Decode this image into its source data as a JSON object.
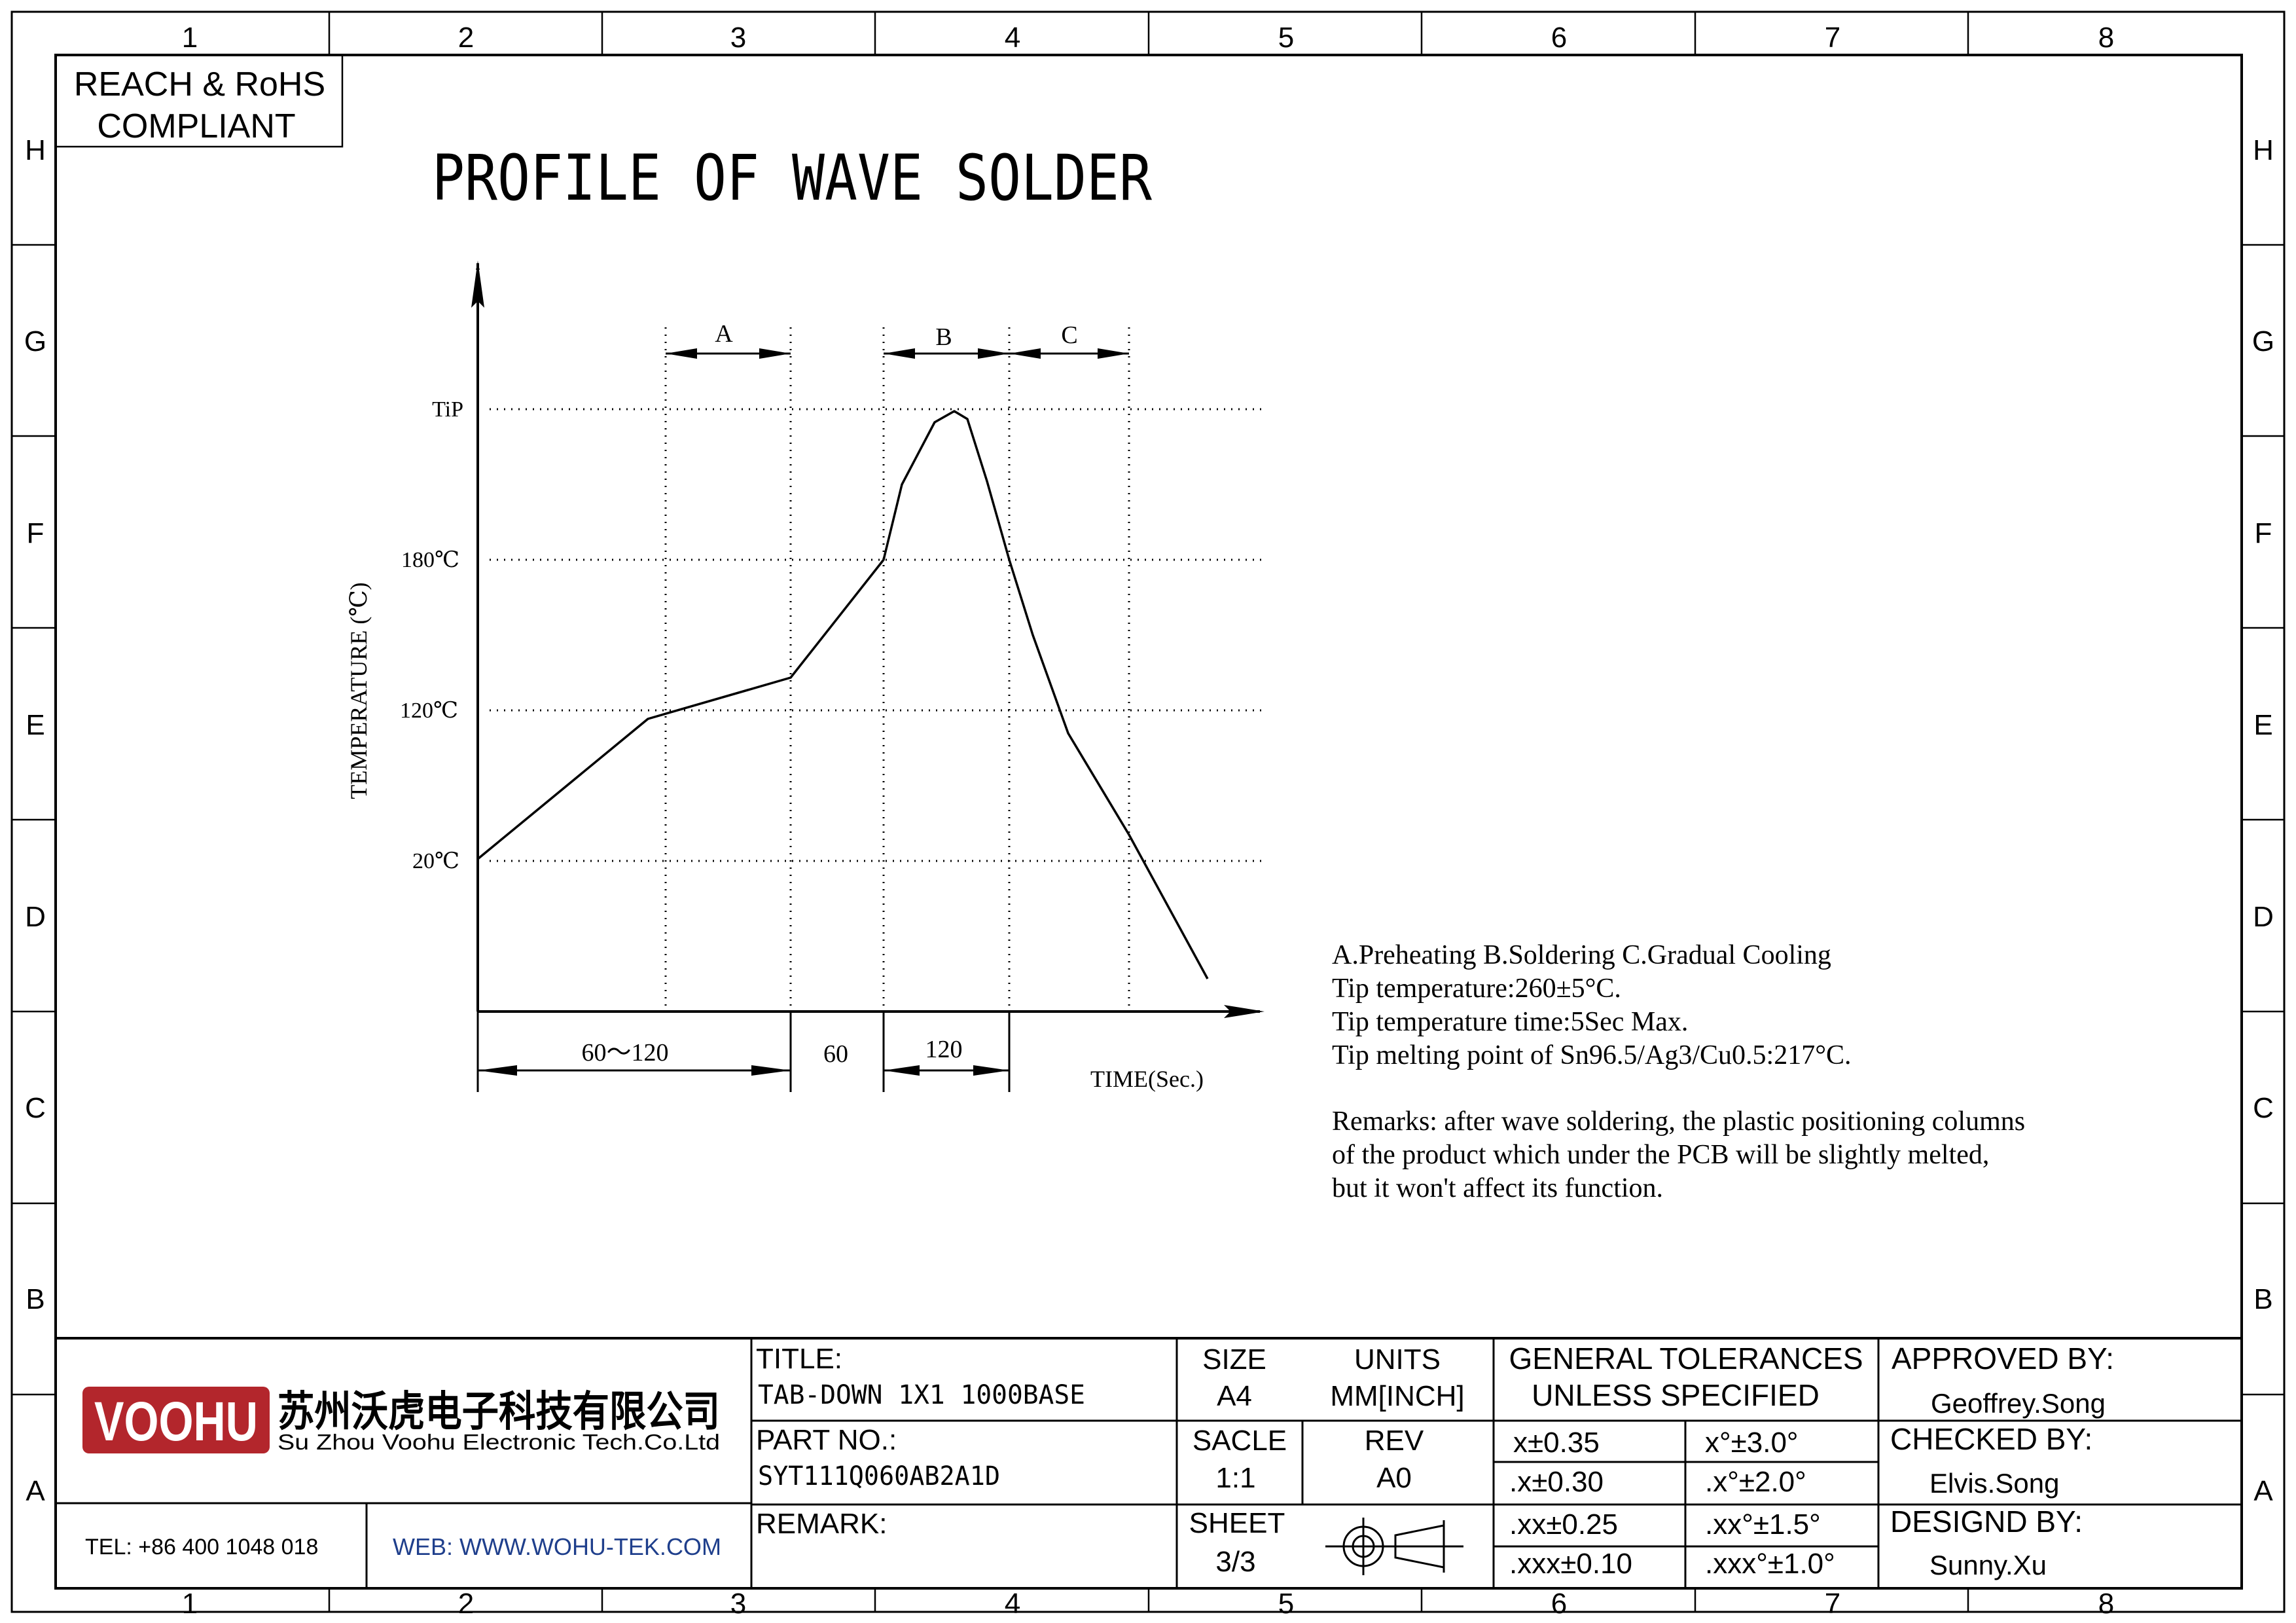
{
  "border": {
    "columns": [
      "1",
      "2",
      "3",
      "4",
      "5",
      "6",
      "7",
      "8"
    ],
    "rows": [
      "H",
      "G",
      "F",
      "E",
      "D",
      "C",
      "B",
      "A"
    ]
  },
  "compliance": {
    "line1": "REACH & RoHS",
    "line2": "COMPLIANT"
  },
  "drawing_title": "PROFILE OF WAVE SOLDER",
  "chart_data": {
    "type": "line",
    "ylabel": "TEMPERATURE (℃)",
    "xlabel": "TIME(Sec.)",
    "y_ticks": [
      "TiP",
      "180℃",
      "120℃",
      "20℃"
    ],
    "y_values_c": {
      "TiP": 260,
      "180℃": 180,
      "120℃": 120,
      "20℃": 20
    },
    "zones": [
      "A",
      "B",
      "C"
    ],
    "time_spans": [
      "60～120",
      "60",
      "120"
    ],
    "time_spans_s": [
      [
        60,
        120
      ],
      60,
      120
    ],
    "grid": "dotted"
  },
  "notes": {
    "line1": "A.Preheating  B.Soldering  C.Gradual Cooling",
    "line2": "Tip temperature:260±5°C.",
    "line3": "Tip temperature time:5Sec Max.",
    "line4": "Tip melting point of Sn96.5/Ag3/Cu0.5:217°C.",
    "remark1": "Remarks: after wave soldering, the plastic positioning columns",
    "remark2": "of the product  which under the PCB will be slightly melted,",
    "remark3": "but it won't affect its function."
  },
  "title_block": {
    "logo_text": "VOOHU",
    "company_cn": "苏州沃虎电子科技有限公司",
    "company_en": "Su Zhou Voohu Electronic Tech.Co.Ltd",
    "tel": "TEL: +86 400 1048 018",
    "web": "WEB: WWW.WOHU-TEK.COM",
    "title_label": "TITLE:",
    "title_value": "TAB-DOWN 1X1 1000BASE",
    "part_label": "PART NO.:",
    "part_value": "SYT111Q060AB2A1D",
    "remark_label": "REMARK:",
    "size_label": "SIZE",
    "size_value": "A4",
    "units_label": "UNITS",
    "units_value": "MM[INCH]",
    "scale_label": "SACLE",
    "scale_value": "1:1",
    "rev_label": "REV",
    "rev_value": "A0",
    "sheet_label": "SHEET",
    "sheet_value": "3/3",
    "tol_title1": "GENERAL TOLERANCES",
    "tol_title2": "UNLESS SPECIFIED",
    "tol": [
      [
        "x±0.35",
        "x°±3.0°"
      ],
      [
        ".x±0.30",
        ".x°±2.0°"
      ],
      [
        ".xx±0.25",
        ".xx°±1.5°"
      ],
      [
        ".xxx±0.10",
        ".xxx°±1.0°"
      ]
    ],
    "approved_label": "APPROVED BY:",
    "approved_value": "Geoffrey.Song",
    "checked_label": "CHECKED BY:",
    "checked_value": "Elvis.Song",
    "designed_label": "DESIGND BY:",
    "designed_value": "Sunny.Xu"
  },
  "colors": {
    "line": "#000000",
    "logo_red": "#b3262c",
    "web_blue": "#1f3f8c"
  }
}
